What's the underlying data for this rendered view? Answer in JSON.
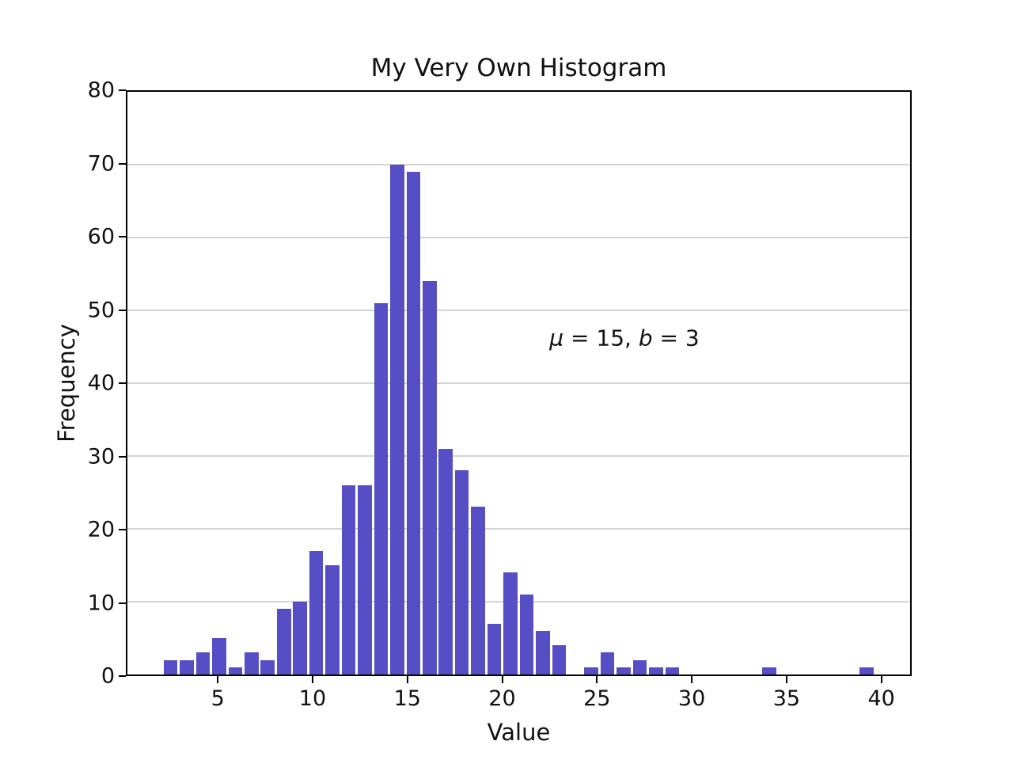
{
  "figure": {
    "title": "My Very Own Histogram",
    "xlabel": "Value",
    "ylabel": "Frequency"
  },
  "annotation": {
    "full_text": "μ = 15, b = 3",
    "mu_symbol": "μ",
    "mu_value_part": " = 15, ",
    "b_symbol": "b",
    "b_value_part": " = 3"
  },
  "colors": {
    "bar_fill": "#554EC5",
    "gridline": "#d4d4d4",
    "spine": "#000000",
    "background": "#ffffff",
    "text": "#111111"
  },
  "chart_data": {
    "type": "bar",
    "subtype": "histogram",
    "title": "My Very Own Histogram",
    "xlabel": "Value",
    "ylabel": "Frequency",
    "annotation": {
      "text": "μ = 15, b = 3",
      "x_data": 26.5,
      "y_data": 46
    },
    "bin_start": 2.01,
    "bin_width": 0.857,
    "num_bins": 44,
    "counts": [
      2,
      2,
      3,
      5,
      1,
      3,
      2,
      9,
      10,
      17,
      15,
      26,
      26,
      51,
      70,
      69,
      54,
      31,
      28,
      23,
      7,
      14,
      11,
      6,
      4,
      0,
      1,
      3,
      1,
      2,
      1,
      1,
      0,
      0,
      0,
      0,
      0,
      1,
      0,
      0,
      0,
      0,
      0,
      1
    ],
    "total_samples": 500,
    "peak_count": 70,
    "rwidth": 0.86,
    "xlim": [
      0.15,
      41.6
    ],
    "ylim": [
      0,
      80
    ],
    "xticks": [
      5,
      10,
      15,
      20,
      25,
      30,
      35,
      40
    ],
    "yticks": [
      0,
      10,
      20,
      30,
      40,
      50,
      60,
      70,
      80
    ],
    "grid": "horizontal-only",
    "legend": "none"
  }
}
